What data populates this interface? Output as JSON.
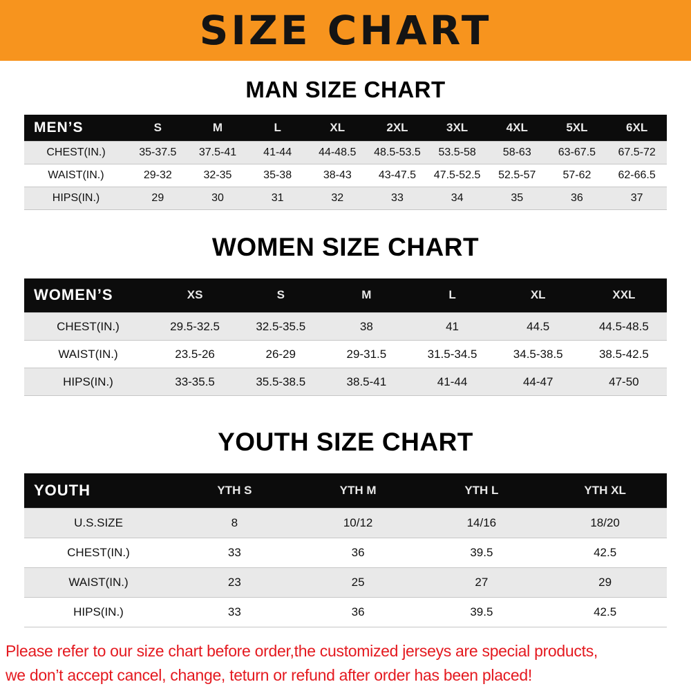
{
  "banner": {
    "title": "SIZE CHART",
    "bg_color": "#f7941e"
  },
  "sections": [
    {
      "heading": "MAN SIZE CHART",
      "table": {
        "header_label": "MEN’S",
        "columns": [
          "S",
          "M",
          "L",
          "XL",
          "2XL",
          "3XL",
          "4XL",
          "5XL",
          "6XL"
        ],
        "rows": [
          {
            "label": "CHEST(IN.)",
            "values": [
              "35-37.5",
              "37.5-41",
              "41-44",
              "44-48.5",
              "48.5-53.5",
              "53.5-58",
              "58-63",
              "63-67.5",
              "67.5-72"
            ]
          },
          {
            "label": "WAIST(IN.)",
            "values": [
              "29-32",
              "32-35",
              "35-38",
              "38-43",
              "43-47.5",
              "47.5-52.5",
              "52.5-57",
              "57-62",
              "62-66.5"
            ]
          },
          {
            "label": "HIPS(IN.)",
            "values": [
              "29",
              "30",
              "31",
              "32",
              "33",
              "34",
              "35",
              "36",
              "37"
            ]
          }
        ]
      }
    },
    {
      "heading": "WOMEN SIZE CHART",
      "table": {
        "header_label": "WOMEN’S",
        "columns": [
          "XS",
          "S",
          "M",
          "L",
          "XL",
          "XXL"
        ],
        "rows": [
          {
            "label": "CHEST(IN.)",
            "values": [
              "29.5-32.5",
              "32.5-35.5",
              "38",
              "41",
              "44.5",
              "44.5-48.5"
            ]
          },
          {
            "label": "WAIST(IN.)",
            "values": [
              "23.5-26",
              "26-29",
              "29-31.5",
              "31.5-34.5",
              "34.5-38.5",
              "38.5-42.5"
            ]
          },
          {
            "label": "HIPS(IN.)",
            "values": [
              "33-35.5",
              "35.5-38.5",
              "38.5-41",
              "41-44",
              "44-47",
              "47-50"
            ]
          }
        ]
      }
    },
    {
      "heading": "YOUTH SIZE CHART",
      "table": {
        "header_label": "YOUTH",
        "columns": [
          "YTH S",
          "YTH M",
          "YTH L",
          "YTH XL"
        ],
        "rows": [
          {
            "label": "U.S.SIZE",
            "values": [
              "8",
              "10/12",
              "14/16",
              "18/20"
            ]
          },
          {
            "label": "CHEST(IN.)",
            "values": [
              "33",
              "36",
              "39.5",
              "42.5"
            ]
          },
          {
            "label": "WAIST(IN.)",
            "values": [
              "23",
              "25",
              "27",
              "29"
            ]
          },
          {
            "label": "HIPS(IN.)",
            "values": [
              "33",
              "36",
              "39.5",
              "42.5"
            ]
          }
        ]
      }
    }
  ],
  "footer": {
    "lines": [
      "Please refer to our size chart before order,the customized jerseys are special products,",
      "we don’t accept cancel, change, teturn or refund after order has been placed!"
    ]
  }
}
